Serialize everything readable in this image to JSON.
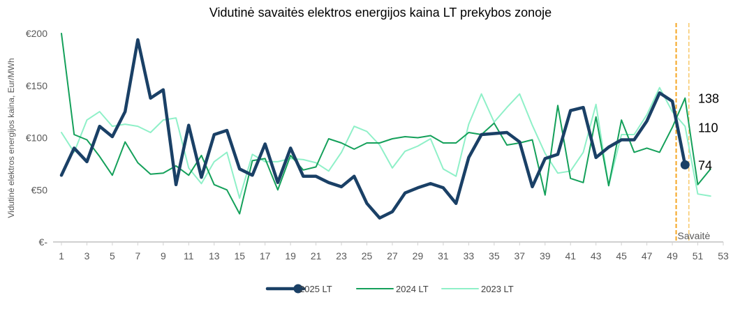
{
  "chart_data": {
    "type": "line",
    "title": "Vidutinė savaitės elektros energijos kaina LT prekybos zonoje",
    "ylabel": "Vidutinė elektros energijos kaina, Eur/MWh",
    "ylim": [
      0,
      200
    ],
    "yticks": [
      {
        "value": 0,
        "label": "€-"
      },
      {
        "value": 50,
        "label": "€50"
      },
      {
        "value": 100,
        "label": "€100"
      },
      {
        "value": 150,
        "label": "€150"
      },
      {
        "value": 200,
        "label": "€200"
      }
    ],
    "xlim": [
      1,
      53
    ],
    "xticks": [
      "1",
      "3",
      "5",
      "7",
      "9",
      "11",
      "13",
      "15",
      "17",
      "19",
      "21",
      "23",
      "25",
      "27",
      "29",
      "31",
      "33",
      "35",
      "37",
      "39",
      "41",
      "43",
      "45",
      "47",
      "49",
      "51",
      "53"
    ],
    "week_marker": {
      "label": "Savaitė",
      "weeks": [
        49.3,
        50.3
      ]
    },
    "series": [
      {
        "name": "2025 LT",
        "color": "#1a4066",
        "values": [
          64,
          90,
          77,
          111,
          101,
          125,
          194,
          138,
          146,
          55,
          112,
          62,
          103,
          107,
          70,
          64,
          94,
          57,
          90,
          63,
          63,
          57,
          53,
          63,
          37,
          23,
          29,
          47,
          52,
          56,
          52,
          37,
          81,
          103,
          104,
          105,
          96,
          53,
          80,
          84,
          126,
          129,
          81,
          91,
          98,
          98,
          116,
          143,
          135,
          74
        ]
      },
      {
        "name": "2024 LT",
        "color": "#14a05a",
        "values": [
          200,
          103,
          98,
          82,
          64,
          96,
          76,
          65,
          66,
          73,
          64,
          83,
          55,
          50,
          27,
          78,
          80,
          50,
          83,
          69,
          72,
          99,
          95,
          89,
          95,
          95,
          99,
          101,
          100,
          102,
          95,
          95,
          105,
          103,
          114,
          93,
          95,
          98,
          45,
          131,
          61,
          57,
          120,
          54,
          117,
          86,
          90,
          86,
          110,
          138,
          55,
          70
        ]
      },
      {
        "name": "2023 LT",
        "color": "#8ff0c8",
        "values": [
          105,
          86,
          117,
          125,
          111,
          113,
          111,
          105,
          117,
          119,
          71,
          56,
          77,
          86,
          42,
          84,
          77,
          77,
          80,
          79,
          76,
          68,
          86,
          111,
          106,
          93,
          71,
          87,
          92,
          99,
          70,
          63,
          113,
          142,
          115,
          129,
          142,
          112,
          85,
          66,
          68,
          86,
          132,
          54,
          103,
          103,
          122,
          148,
          125,
          111,
          46,
          44
        ]
      }
    ],
    "end_labels": [
      {
        "value": 138,
        "text": "138"
      },
      {
        "value": 110,
        "text": "110"
      },
      {
        "value": 74,
        "text": "74"
      }
    ],
    "legend": {
      "placement": "bottom",
      "items": [
        "2025 LT",
        "2024 LT",
        "2023 LT"
      ]
    },
    "grid": false
  }
}
